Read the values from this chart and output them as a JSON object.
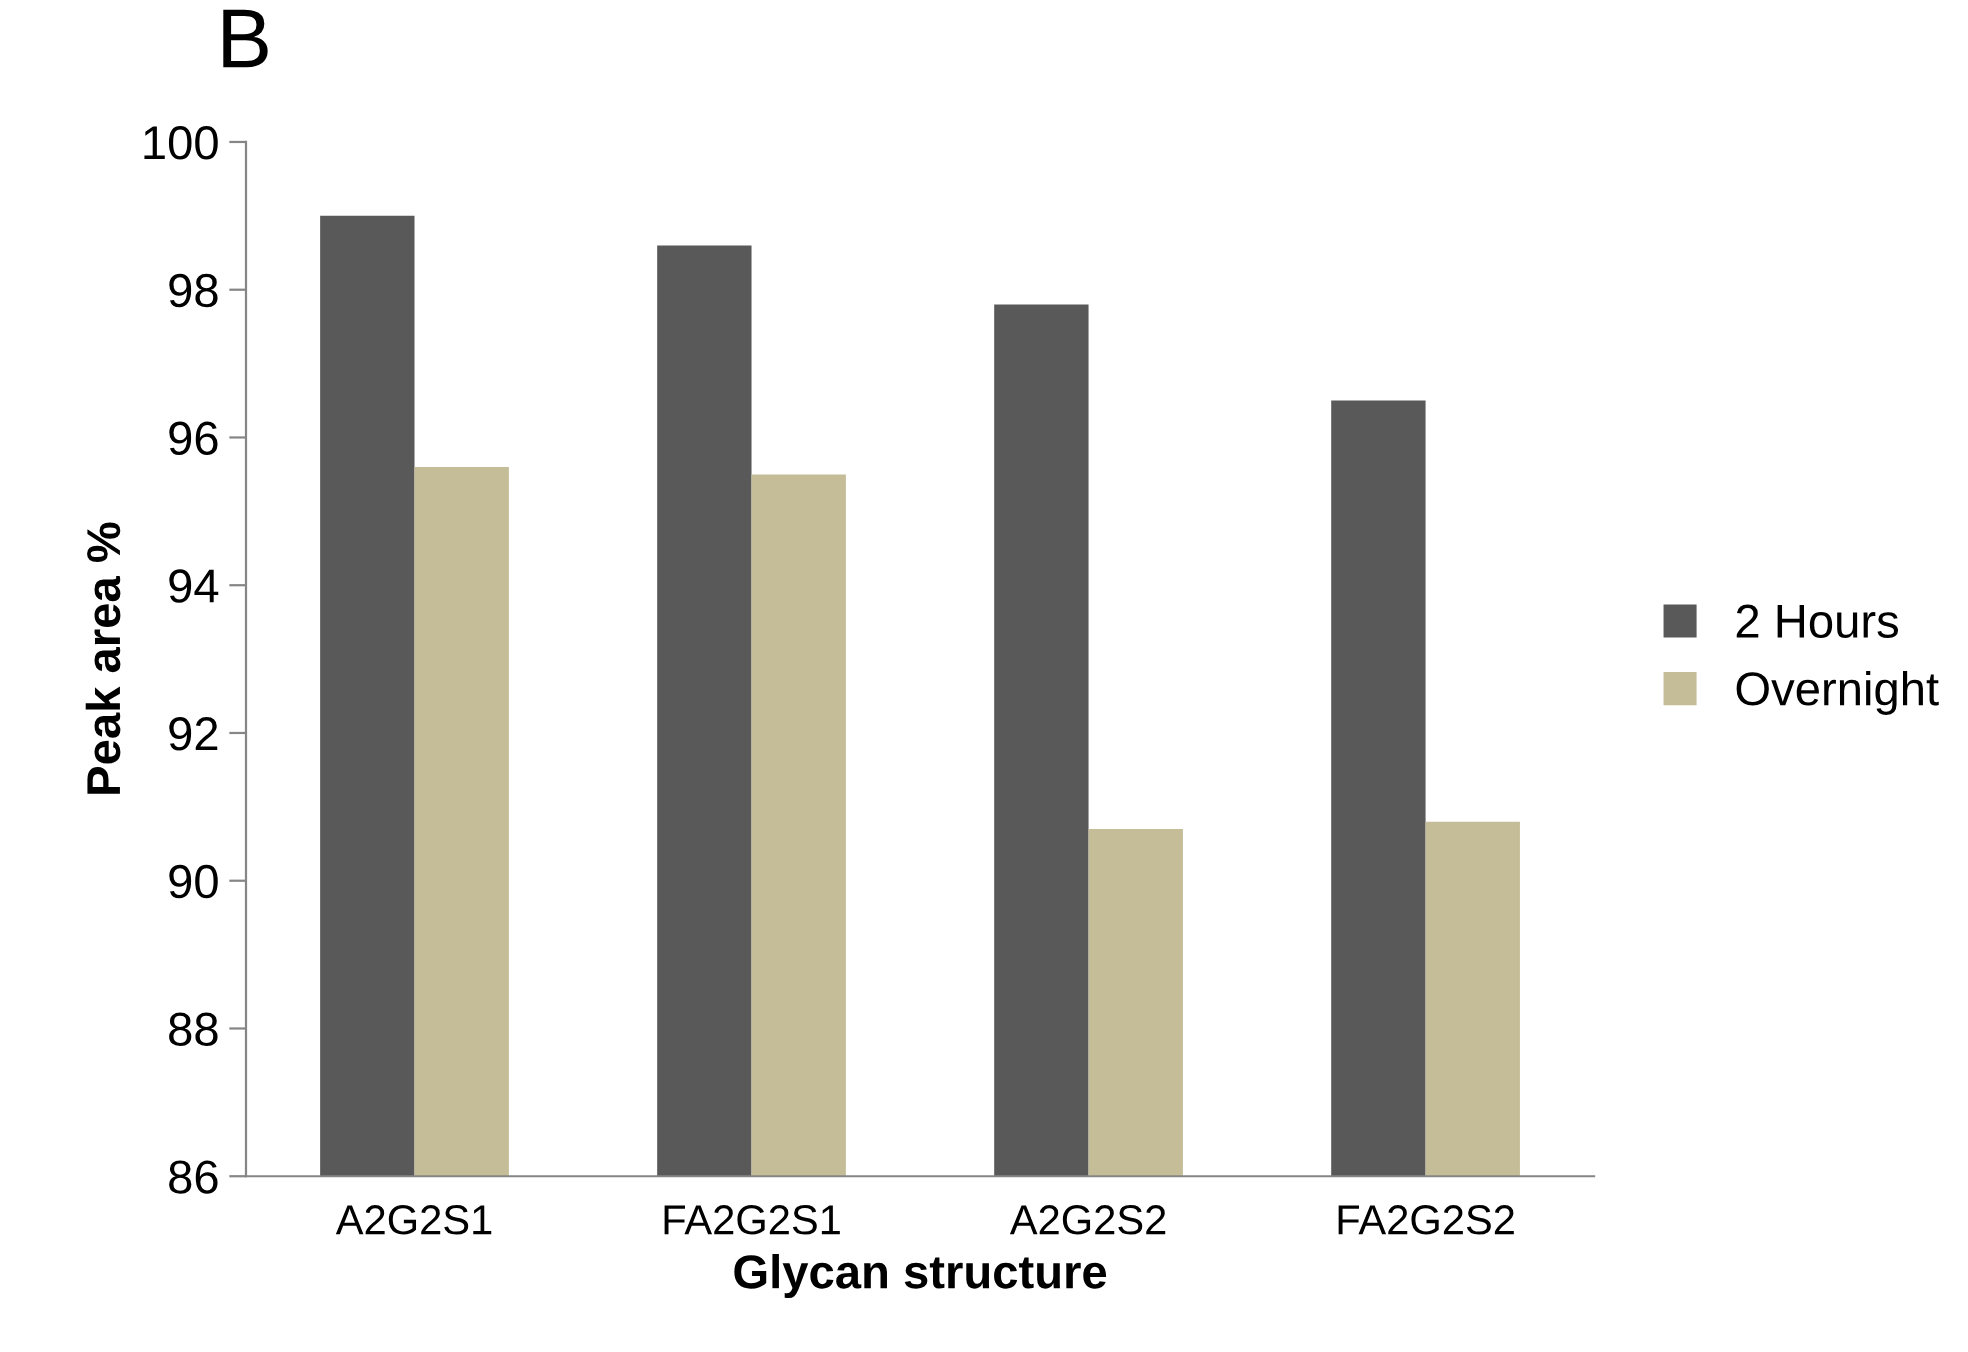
{
  "chart_data": {
    "type": "bar",
    "title": "B",
    "xlabel": "Glycan structure",
    "ylabel": "Peak area %",
    "categories": [
      "A2G2S1",
      "FA2G2S1",
      "A2G2S2",
      "FA2G2S2"
    ],
    "series": [
      {
        "name": "2 Hours",
        "color": "#595959",
        "values": [
          99.0,
          98.6,
          97.8,
          96.5
        ]
      },
      {
        "name": "Overnight",
        "color": "#c4bd97",
        "values": [
          95.6,
          95.5,
          90.7,
          90.8
        ]
      }
    ],
    "ylim": [
      86,
      100
    ],
    "yticks": [
      86,
      88,
      90,
      92,
      94,
      96,
      98,
      100
    ],
    "grid": false,
    "legend": "right"
  }
}
